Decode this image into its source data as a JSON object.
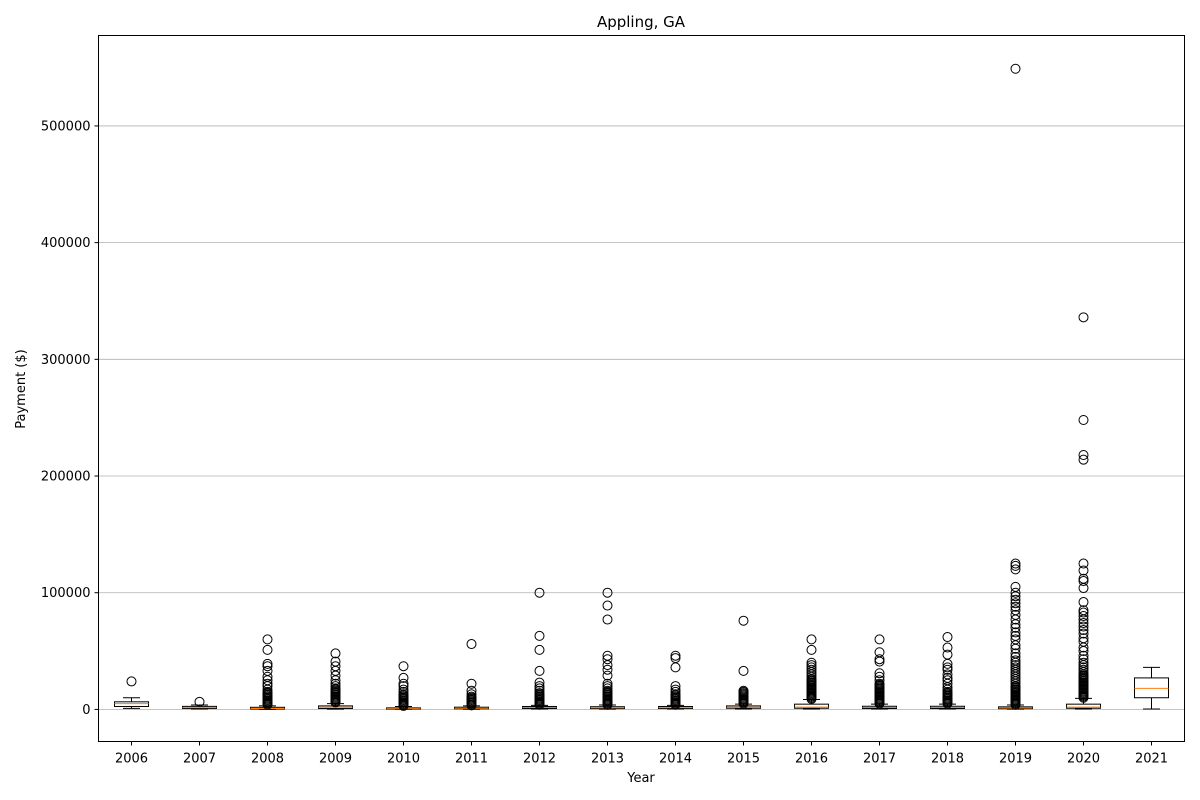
{
  "chart_data": {
    "type": "box",
    "title": "Appling, GA",
    "xlabel": "Year",
    "ylabel": "Payment ($)",
    "ylim": [
      -27500,
      577500
    ],
    "yticks": [
      0,
      100000,
      200000,
      300000,
      400000,
      500000
    ],
    "ytick_labels": [
      "0",
      "100000",
      "200000",
      "300000",
      "400000",
      "500000"
    ],
    "grid": "y-major",
    "colors": {
      "box": "#000000",
      "median": "#ff7f0e",
      "grid": "#b0b0b0"
    },
    "categories": [
      "2006",
      "2007",
      "2008",
      "2009",
      "2010",
      "2011",
      "2012",
      "2013",
      "2014",
      "2015",
      "2016",
      "2017",
      "2018",
      "2019",
      "2020",
      "2021"
    ],
    "boxes": [
      {
        "year": "2006",
        "whisker_low": 900,
        "q1": 2500,
        "median": 5000,
        "q3": 6500,
        "whisker_high": 10000,
        "outliers": [
          24000
        ]
      },
      {
        "year": "2007",
        "whisker_low": 300,
        "q1": 800,
        "median": 1500,
        "q3": 2600,
        "whisker_high": 3800,
        "outliers": [
          6500
        ]
      },
      {
        "year": "2008",
        "whisker_low": 0,
        "q1": 300,
        "median": 800,
        "q3": 1800,
        "whisker_high": 3000,
        "outliers": [
          4000,
          5000,
          6000,
          7000,
          8000,
          9000,
          10000,
          11000,
          12000,
          13000,
          14000,
          15000,
          17000,
          20000,
          22000,
          25000,
          28000,
          33000,
          37000,
          39000,
          51000,
          60000
        ]
      },
      {
        "year": "2009",
        "whisker_low": 200,
        "q1": 800,
        "median": 1800,
        "q3": 3000,
        "whisker_high": 5000,
        "outliers": [
          6000,
          7000,
          8000,
          9000,
          10000,
          11000,
          12000,
          13000,
          14000,
          15000,
          16000,
          17000,
          18000,
          20000,
          22000,
          25000,
          29000,
          33000,
          37000,
          41000,
          48000
        ]
      },
      {
        "year": "2010",
        "whisker_low": 0,
        "q1": 200,
        "median": 600,
        "q3": 1300,
        "whisker_high": 2500,
        "outliers": [
          3000,
          4000,
          5000,
          6000,
          7000,
          8000,
          9000,
          10000,
          11000,
          12000,
          13000,
          15000,
          17000,
          20000,
          22000,
          27000,
          37000
        ]
      },
      {
        "year": "2011",
        "whisker_low": 100,
        "q1": 500,
        "median": 1000,
        "q3": 1900,
        "whisker_high": 3000,
        "outliers": [
          3500,
          4000,
          5000,
          6000,
          7000,
          8000,
          9000,
          10000,
          11000,
          13000,
          16000,
          22000,
          56000
        ]
      },
      {
        "year": "2012",
        "whisker_low": 300,
        "q1": 800,
        "median": 1600,
        "q3": 2500,
        "whisker_high": 3500,
        "outliers": [
          4000,
          5000,
          6000,
          7000,
          8000,
          9000,
          10000,
          11000,
          12000,
          13000,
          14000,
          16000,
          18000,
          20000,
          23000,
          33000,
          51000,
          63000,
          100000
        ]
      },
      {
        "year": "2013",
        "whisker_low": 200,
        "q1": 700,
        "median": 1400,
        "q3": 2300,
        "whisker_high": 3800,
        "outliers": [
          4000,
          5000,
          6000,
          7000,
          8000,
          9000,
          10000,
          11000,
          12000,
          13000,
          14000,
          15000,
          16000,
          18000,
          20000,
          22000,
          29000,
          34000,
          38000,
          43000,
          46000,
          77000,
          89000,
          100000
        ]
      },
      {
        "year": "2014",
        "whisker_low": 300,
        "q1": 800,
        "median": 1500,
        "q3": 2500,
        "whisker_high": 3500,
        "outliers": [
          4000,
          5000,
          6000,
          7000,
          8000,
          9000,
          10000,
          11000,
          12000,
          13000,
          15000,
          17000,
          20000,
          36000,
          44000,
          46000
        ]
      },
      {
        "year": "2015",
        "whisker_low": 400,
        "q1": 1000,
        "median": 1800,
        "q3": 3000,
        "whisker_high": 4500,
        "outliers": [
          5000,
          6000,
          7000,
          8000,
          9000,
          10000,
          11000,
          12000,
          13000,
          14000,
          15000,
          16000,
          33000,
          76000
        ]
      },
      {
        "year": "2016",
        "whisker_low": 300,
        "q1": 1000,
        "median": 2000,
        "q3": 4500,
        "whisker_high": 8500,
        "outliers": [
          9000,
          10000,
          11000,
          12000,
          13000,
          14000,
          15000,
          16000,
          17000,
          18000,
          19000,
          20000,
          21000,
          22000,
          23000,
          24000,
          25000,
          26000,
          28000,
          30000,
          32000,
          34000,
          36000,
          38000,
          40000,
          51000,
          60000
        ]
      },
      {
        "year": "2017",
        "whisker_low": 300,
        "q1": 800,
        "median": 1600,
        "q3": 2700,
        "whisker_high": 4500,
        "outliers": [
          5000,
          6000,
          7000,
          8000,
          9000,
          10000,
          11000,
          12000,
          13000,
          14000,
          15000,
          16000,
          17000,
          18000,
          19000,
          20000,
          21000,
          22000,
          25000,
          28000,
          31000,
          41000,
          43000,
          49000,
          60000
        ]
      },
      {
        "year": "2018",
        "whisker_low": 300,
        "q1": 800,
        "median": 1600,
        "q3": 2700,
        "whisker_high": 4500,
        "outliers": [
          5000,
          6000,
          7000,
          8000,
          9000,
          10000,
          11000,
          12000,
          13000,
          14000,
          15000,
          17000,
          19000,
          22000,
          25000,
          27000,
          30000,
          34000,
          36000,
          39000,
          47000,
          53000,
          62000
        ]
      },
      {
        "year": "2019",
        "whisker_low": 200,
        "q1": 600,
        "median": 1200,
        "q3": 2200,
        "whisker_high": 3800,
        "outliers": [
          4000,
          5000,
          6000,
          7000,
          8000,
          9000,
          10000,
          11000,
          12000,
          13000,
          14000,
          15000,
          16000,
          17000,
          18000,
          19000,
          20000,
          22000,
          24000,
          26000,
          28000,
          30000,
          32000,
          34000,
          36000,
          38000,
          40000,
          42000,
          45000,
          48000,
          52000,
          55000,
          60000,
          63000,
          66000,
          70000,
          73000,
          77000,
          81000,
          85000,
          88000,
          91000,
          94000,
          97000,
          100000,
          105000,
          120000,
          123000,
          125000,
          549000
        ]
      },
      {
        "year": "2020",
        "whisker_low": 300,
        "q1": 1000,
        "median": 2000,
        "q3": 4500,
        "whisker_high": 9500,
        "outliers": [
          10000,
          11000,
          12000,
          13000,
          14000,
          15000,
          16000,
          17000,
          18000,
          19000,
          20000,
          21000,
          22000,
          23000,
          24000,
          25000,
          26000,
          27000,
          28000,
          29000,
          30000,
          32000,
          34000,
          36000,
          38000,
          40000,
          43000,
          46000,
          50000,
          53000,
          58000,
          61000,
          65000,
          68000,
          71000,
          74000,
          77000,
          80000,
          83000,
          85000,
          92000,
          104000,
          110000,
          112000,
          119000,
          125000,
          214000,
          218000,
          248000,
          336000
        ]
      },
      {
        "year": "2021",
        "whisker_low": 300,
        "q1": 10000,
        "median": 18000,
        "q3": 27000,
        "whisker_high": 36000,
        "outliers": []
      }
    ]
  }
}
